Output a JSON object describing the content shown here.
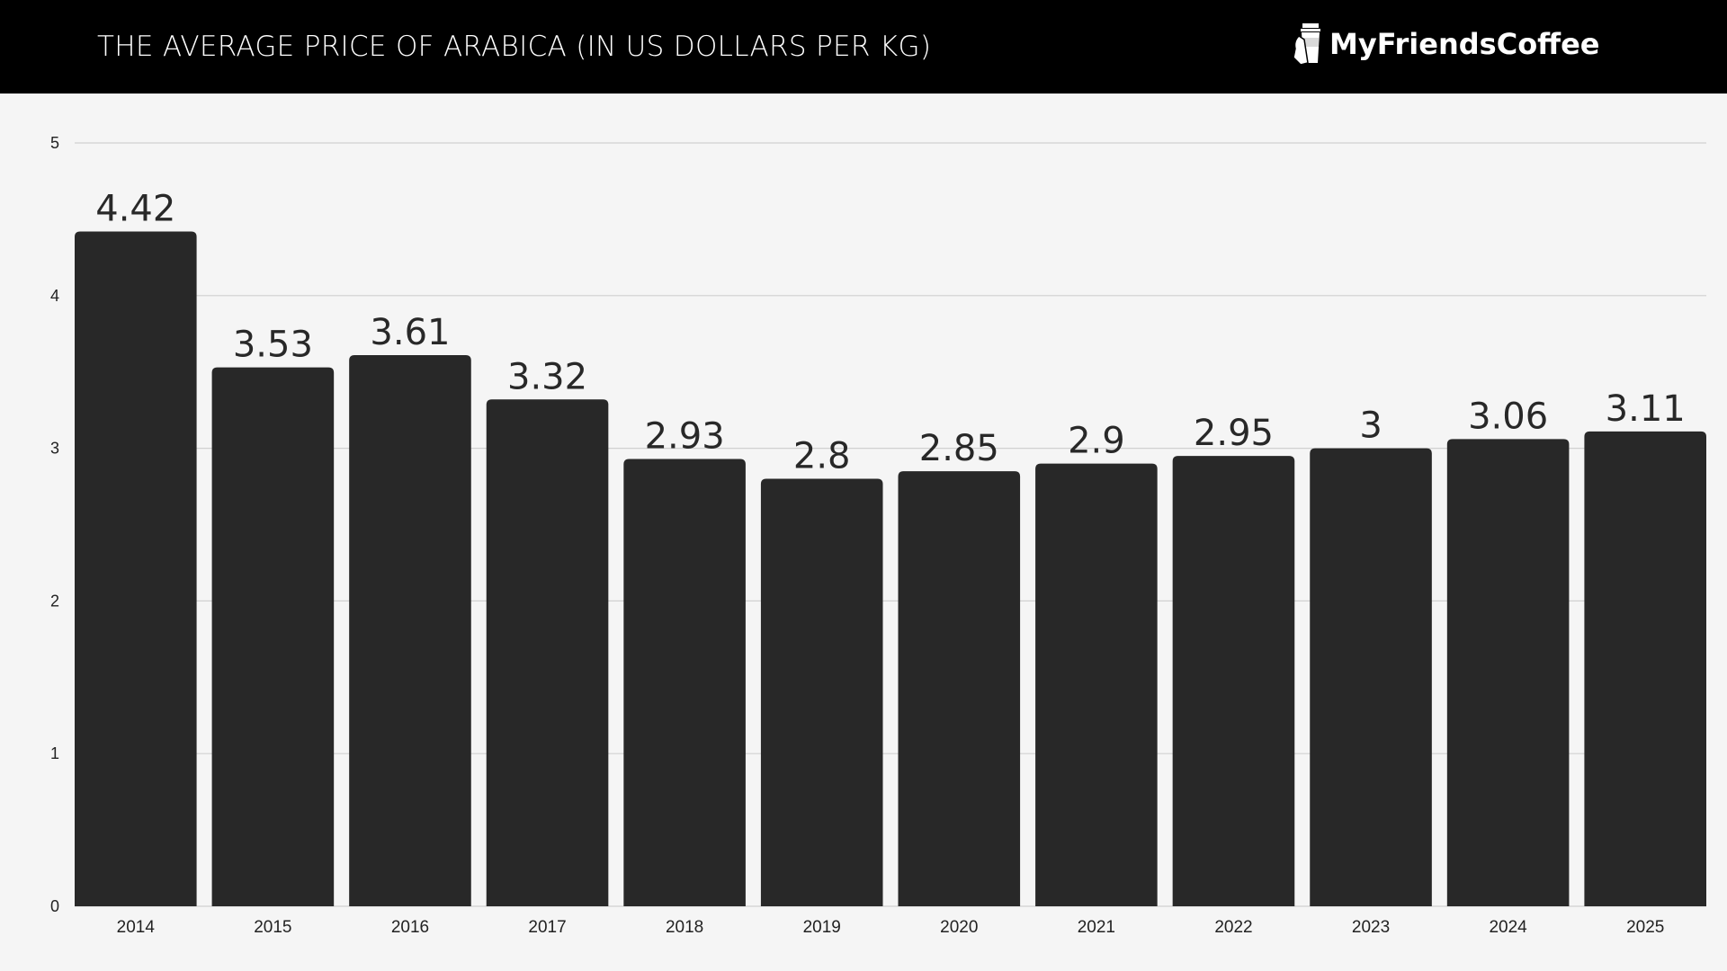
{
  "header": {
    "title": "THE AVERAGE PRICE OF ARABICA (IN US DOLLARS PER KG)",
    "logo": "MyFriendsCoffee",
    "logo_icon": "coffee-cup-in-hand-icon"
  },
  "colors": {
    "bar": "#282828",
    "header_bg": "#000000",
    "background": "#f5f5f5",
    "grid": "#d0d0d0"
  },
  "chart_data": {
    "type": "bar",
    "title": "THE AVERAGE PRICE OF ARABICA (IN US DOLLARS PER KG)",
    "categories": [
      "2014",
      "2015",
      "2016",
      "2017",
      "2018",
      "2019",
      "2020",
      "2021",
      "2022",
      "2023",
      "2024",
      "2025"
    ],
    "values": [
      4.42,
      3.53,
      3.61,
      3.32,
      2.93,
      2.8,
      2.85,
      2.9,
      2.95,
      3,
      3.06,
      3.11
    ],
    "data_labels": [
      "4.42",
      "3.53",
      "3.61",
      "3.32",
      "2.93",
      "2.8",
      "2.85",
      "2.9",
      "2.95",
      "3",
      "3.06",
      "3.11"
    ],
    "yticks": [
      "0",
      "1",
      "2",
      "3",
      "4",
      "5"
    ],
    "ylim": [
      0,
      5
    ],
    "grid": true,
    "xlabel": "",
    "ylabel": ""
  }
}
